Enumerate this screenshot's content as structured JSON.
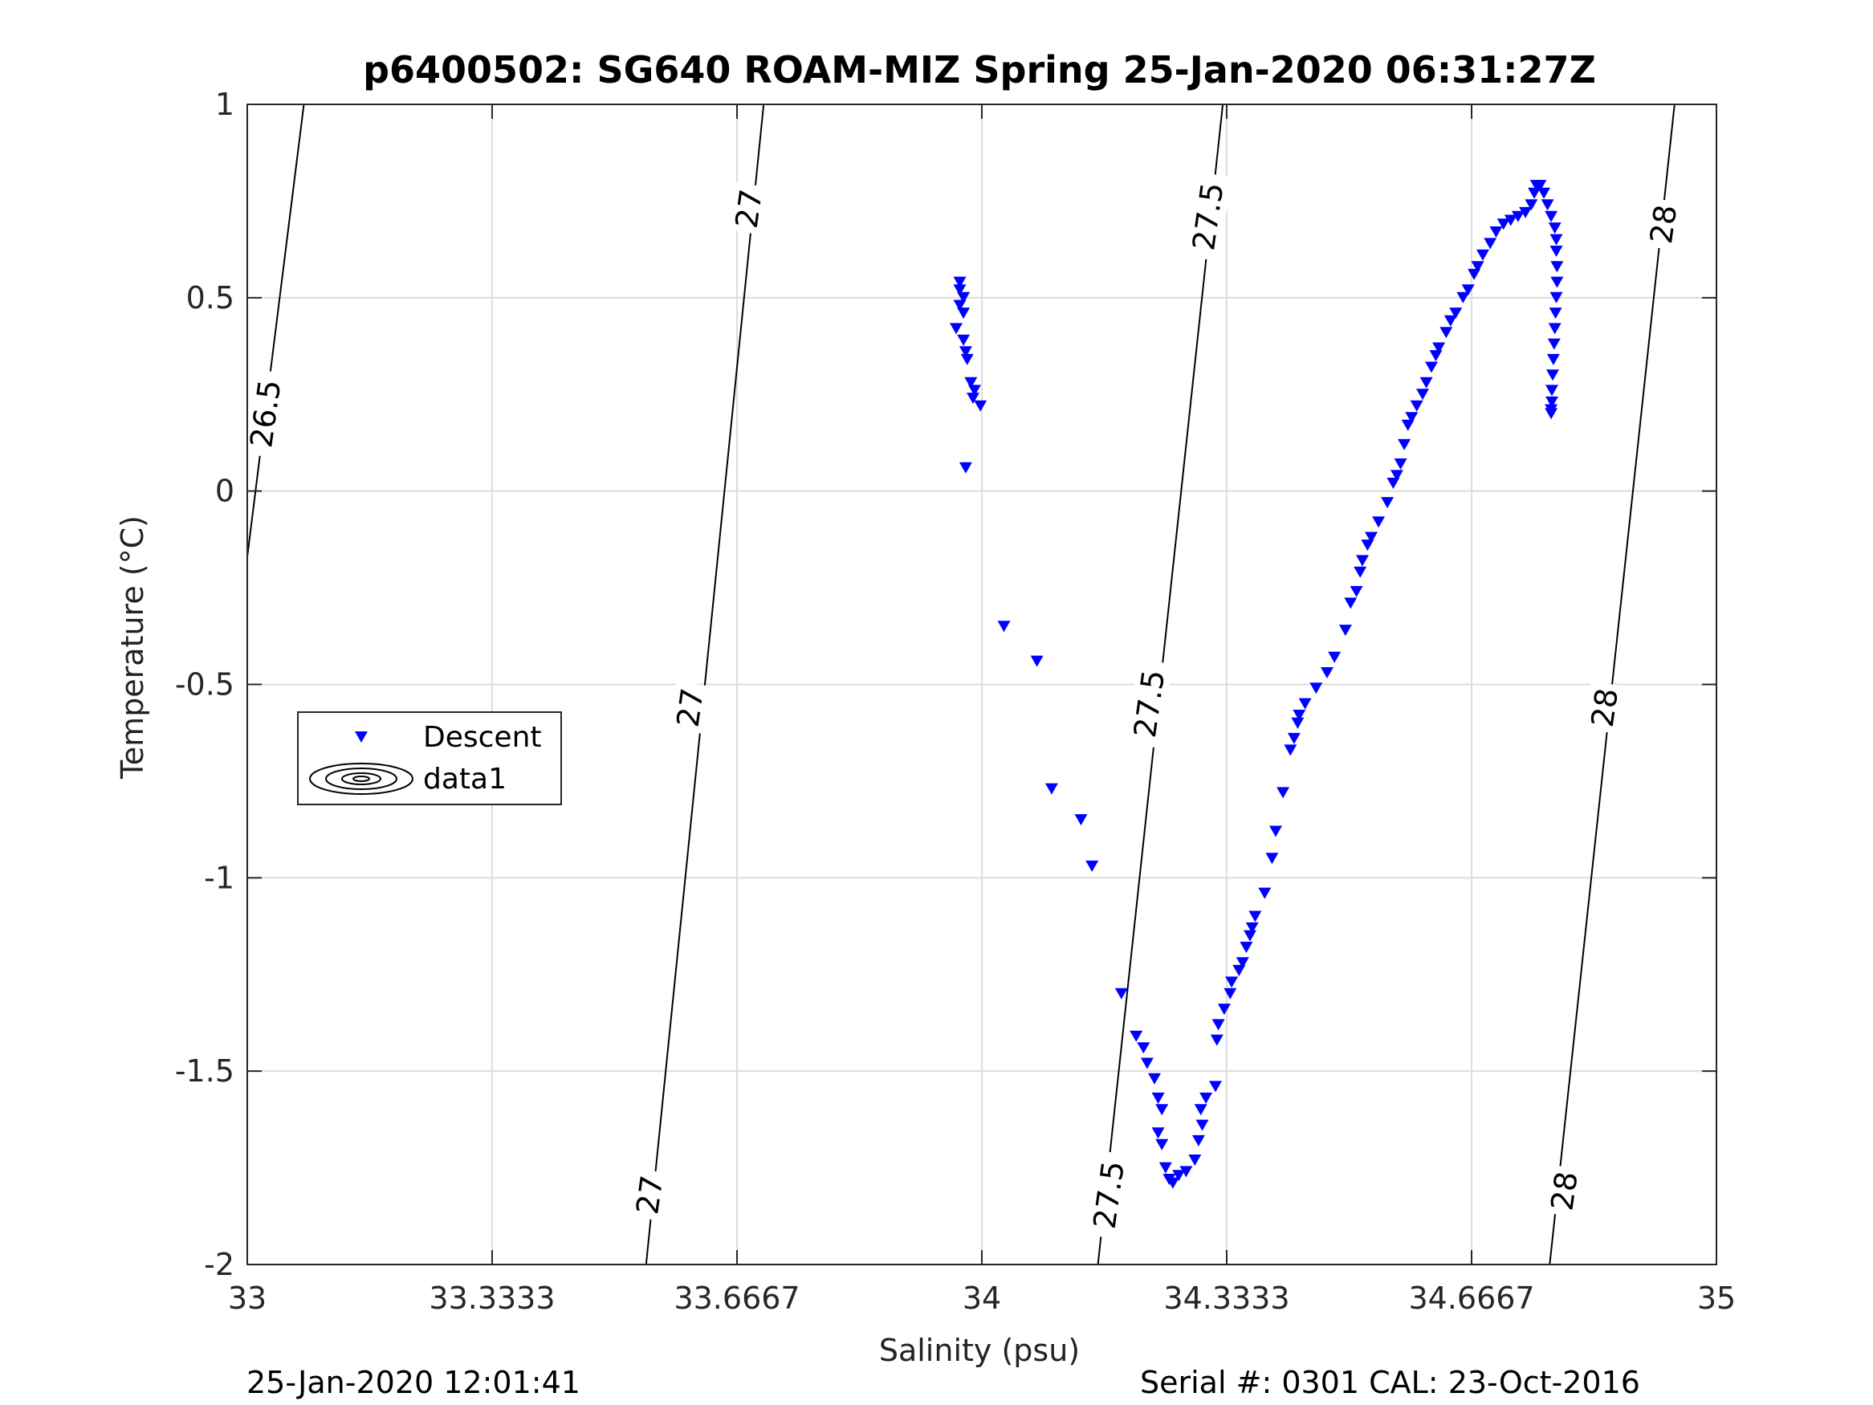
{
  "chart_data": {
    "type": "scatter",
    "title": "p6400502: SG640 ROAM-MIZ Spring 25-Jan-2020 06:31:27Z",
    "xlabel": "Salinity (psu)",
    "ylabel": "Temperature (°C)",
    "xlim": [
      33,
      35
    ],
    "ylim": [
      -2,
      1
    ],
    "xticks": [
      "33",
      "33.3333",
      "33.6667",
      "34",
      "34.3333",
      "34.6667",
      "35"
    ],
    "yticks": [
      "1",
      "0.5",
      "0",
      "-0.5",
      "-1",
      "-1.5",
      "-2"
    ],
    "grid": true,
    "legend": {
      "placement": "middle-left",
      "entries": [
        "Descent",
        "data1"
      ]
    },
    "series": [
      {
        "name": "Descent",
        "marker": "down-triangle",
        "color": "#0000ff",
        "points": [
          [
            33.97,
            0.54
          ],
          [
            33.97,
            0.52
          ],
          [
            33.975,
            0.5
          ],
          [
            33.97,
            0.48
          ],
          [
            33.975,
            0.46
          ],
          [
            33.965,
            0.42
          ],
          [
            33.975,
            0.39
          ],
          [
            33.978,
            0.36
          ],
          [
            33.98,
            0.34
          ],
          [
            33.985,
            0.28
          ],
          [
            33.99,
            0.26
          ],
          [
            33.988,
            0.24
          ],
          [
            33.998,
            0.22
          ],
          [
            33.978,
            0.06
          ],
          [
            34.03,
            -0.35
          ],
          [
            34.075,
            -0.44
          ],
          [
            34.095,
            -0.77
          ],
          [
            34.135,
            -0.85
          ],
          [
            34.15,
            -0.97
          ],
          [
            34.19,
            -1.3
          ],
          [
            34.21,
            -1.41
          ],
          [
            34.22,
            -1.44
          ],
          [
            34.225,
            -1.48
          ],
          [
            34.235,
            -1.52
          ],
          [
            34.24,
            -1.57
          ],
          [
            34.245,
            -1.6
          ],
          [
            34.24,
            -1.66
          ],
          [
            34.245,
            -1.69
          ],
          [
            34.25,
            -1.75
          ],
          [
            34.255,
            -1.78
          ],
          [
            34.26,
            -1.79
          ],
          [
            34.268,
            -1.77
          ],
          [
            34.278,
            -1.76
          ],
          [
            34.29,
            -1.73
          ],
          [
            34.295,
            -1.68
          ],
          [
            34.3,
            -1.64
          ],
          [
            34.298,
            -1.6
          ],
          [
            34.305,
            -1.57
          ],
          [
            34.318,
            -1.54
          ],
          [
            34.32,
            -1.42
          ],
          [
            34.322,
            -1.38
          ],
          [
            34.33,
            -1.34
          ],
          [
            34.338,
            -1.3
          ],
          [
            34.34,
            -1.27
          ],
          [
            34.35,
            -1.24
          ],
          [
            34.355,
            -1.22
          ],
          [
            34.36,
            -1.18
          ],
          [
            34.365,
            -1.15
          ],
          [
            34.368,
            -1.13
          ],
          [
            34.372,
            -1.1
          ],
          [
            34.385,
            -1.04
          ],
          [
            34.395,
            -0.95
          ],
          [
            34.4,
            -0.88
          ],
          [
            34.41,
            -0.78
          ],
          [
            34.42,
            -0.67
          ],
          [
            34.425,
            -0.64
          ],
          [
            34.43,
            -0.6
          ],
          [
            34.432,
            -0.58
          ],
          [
            34.44,
            -0.55
          ],
          [
            34.455,
            -0.51
          ],
          [
            34.47,
            -0.47
          ],
          [
            34.48,
            -0.43
          ],
          [
            34.495,
            -0.36
          ],
          [
            34.502,
            -0.29
          ],
          [
            34.51,
            -0.26
          ],
          [
            34.515,
            -0.21
          ],
          [
            34.518,
            -0.18
          ],
          [
            34.525,
            -0.14
          ],
          [
            34.53,
            -0.12
          ],
          [
            34.54,
            -0.08
          ],
          [
            34.552,
            -0.03
          ],
          [
            34.56,
            0.02
          ],
          [
            34.565,
            0.04
          ],
          [
            34.57,
            0.07
          ],
          [
            34.575,
            0.12
          ],
          [
            34.58,
            0.17
          ],
          [
            34.585,
            0.19
          ],
          [
            34.592,
            0.22
          ],
          [
            34.6,
            0.25
          ],
          [
            34.605,
            0.28
          ],
          [
            34.612,
            0.32
          ],
          [
            34.618,
            0.35
          ],
          [
            34.622,
            0.37
          ],
          [
            34.632,
            0.41
          ],
          [
            34.638,
            0.44
          ],
          [
            34.645,
            0.46
          ],
          [
            34.655,
            0.5
          ],
          [
            34.662,
            0.52
          ],
          [
            34.67,
            0.56
          ],
          [
            34.675,
            0.58
          ],
          [
            34.682,
            0.61
          ],
          [
            34.692,
            0.64
          ],
          [
            34.7,
            0.67
          ],
          [
            34.71,
            0.69
          ],
          [
            34.72,
            0.7
          ],
          [
            34.73,
            0.71
          ],
          [
            34.74,
            0.72
          ],
          [
            34.748,
            0.74
          ],
          [
            34.752,
            0.77
          ],
          [
            34.755,
            0.79
          ],
          [
            34.76,
            0.79
          ],
          [
            34.765,
            0.77
          ],
          [
            34.77,
            0.74
          ],
          [
            34.775,
            0.71
          ],
          [
            34.78,
            0.68
          ],
          [
            34.782,
            0.65
          ],
          [
            34.782,
            0.62
          ],
          [
            34.783,
            0.58
          ],
          [
            34.783,
            0.54
          ],
          [
            34.782,
            0.5
          ],
          [
            34.781,
            0.46
          ],
          [
            34.78,
            0.42
          ],
          [
            34.779,
            0.38
          ],
          [
            34.778,
            0.34
          ],
          [
            34.777,
            0.3
          ],
          [
            34.776,
            0.26
          ],
          [
            34.776,
            0.23
          ],
          [
            34.775,
            0.21
          ],
          [
            34.775,
            0.2
          ]
        ]
      }
    ],
    "contours": [
      {
        "label": "26.5",
        "points": [
          [
            33.0,
            -0.17
          ],
          [
            33.077,
            1.0
          ]
        ]
      },
      {
        "label": "27",
        "points": [
          [
            33.543,
            -2.0
          ],
          [
            33.703,
            1.0
          ]
        ]
      },
      {
        "label": "27.5",
        "points": [
          [
            34.158,
            -2.0
          ],
          [
            34.328,
            1.0
          ]
        ]
      },
      {
        "label": "28",
        "points": [
          [
            34.773,
            -2.0
          ],
          [
            34.943,
            1.0
          ]
        ]
      }
    ],
    "contour_label_positions": [
      {
        "label": "26.5",
        "x": 33.025,
        "y": 0.2
      },
      {
        "label": "27",
        "x": 33.683,
        "y": 0.73
      },
      {
        "label": "27",
        "x": 33.603,
        "y": -0.56
      },
      {
        "label": "27",
        "x": 33.548,
        "y": -1.82
      },
      {
        "label": "27.5",
        "x": 34.308,
        "y": 0.71
      },
      {
        "label": "27.5",
        "x": 34.228,
        "y": -0.55
      },
      {
        "label": "27.5",
        "x": 34.173,
        "y": -1.82
      },
      {
        "label": "28",
        "x": 34.928,
        "y": 0.69
      },
      {
        "label": "28",
        "x": 34.848,
        "y": -0.56
      },
      {
        "label": "28",
        "x": 34.793,
        "y": -1.81
      }
    ]
  },
  "footer": {
    "timestamp": "25-Jan-2020 12:01:41",
    "serial": "Serial #: 0301  CAL: 23-Oct-2016"
  }
}
